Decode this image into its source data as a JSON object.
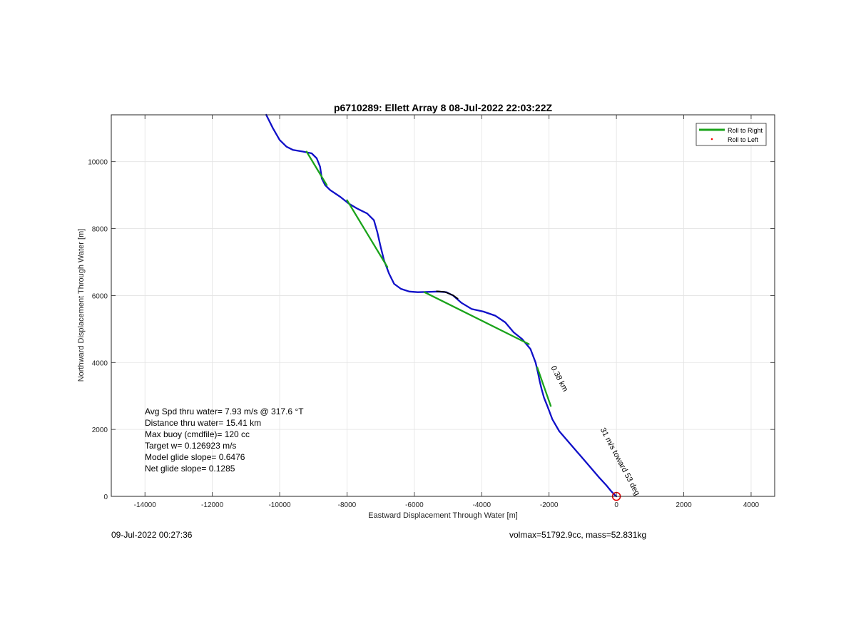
{
  "chart_data": {
    "type": "line",
    "title": "p6710289: Ellett Array 8 08-Jul-2022 22:03:22Z",
    "xlabel": "Eastward Displacement Through Water [m]",
    "ylabel": "Northward Displacement Through Water [m]",
    "xlim": [
      -15000,
      4700
    ],
    "ylim": [
      0,
      11400
    ],
    "xticks": [
      -14000,
      -12000,
      -10000,
      -8000,
      -6000,
      -4000,
      -2000,
      0,
      2000,
      4000
    ],
    "yticks": [
      0,
      2000,
      4000,
      6000,
      8000,
      10000
    ],
    "grid": true,
    "legend_position": "top-right",
    "legend": [
      {
        "label": "Roll to Right",
        "color": "#1aa31a",
        "marker": "line"
      },
      {
        "label": "Roll to Left",
        "color": "#ff0000",
        "marker": "dot"
      }
    ],
    "series": [
      {
        "color": "#1010c8",
        "x": [
          -10400,
          -10200,
          -10000,
          -9800,
          -9600,
          -9300,
          -9050,
          -8900,
          -8800,
          -8750,
          -8650,
          -8500,
          -8200,
          -7950,
          -7700,
          -7400,
          -7200,
          -7100,
          -7000,
          -6900,
          -6750,
          -6600,
          -6400,
          -6150,
          -5900,
          -5600,
          -5300,
          -5050,
          -4850,
          -4600,
          -4300,
          -3950,
          -3600,
          -3300,
          -3050,
          -2800,
          -2550,
          -2400,
          -2330,
          -2280,
          -2220,
          -2150,
          -2050,
          -1900,
          -1700,
          -1400,
          -1100,
          -800,
          -500,
          -300,
          -150,
          -50,
          0
        ],
        "y": [
          11400,
          11000,
          10650,
          10450,
          10350,
          10300,
          10250,
          10100,
          9850,
          9500,
          9300,
          9150,
          8950,
          8750,
          8600,
          8450,
          8250,
          7900,
          7450,
          7050,
          6650,
          6350,
          6200,
          6120,
          6100,
          6110,
          6120,
          6100,
          6000,
          5780,
          5600,
          5520,
          5400,
          5200,
          4900,
          4700,
          4400,
          4000,
          3700,
          3450,
          3200,
          2950,
          2700,
          2300,
          1950,
          1600,
          1250,
          900,
          550,
          330,
          150,
          40,
          0
        ]
      },
      {
        "color": "#1aa31a",
        "segments": [
          {
            "x": [
              -9200,
              -8600
            ],
            "y": [
              10300,
              9300
            ]
          },
          {
            "x": [
              -8000,
              -6800
            ],
            "y": [
              8850,
              6850
            ]
          },
          {
            "x": [
              -5700,
              -2600
            ],
            "y": [
              6100,
              4550
            ]
          },
          {
            "x": [
              -2350,
              -1950
            ],
            "y": [
              3850,
              2700
            ]
          }
        ]
      },
      {
        "color": "#000000",
        "x": [
          -5350,
          -5100,
          -4850,
          -4700
        ],
        "y": [
          6130,
          6110,
          6010,
          5900
        ]
      }
    ],
    "start_marker": {
      "x": 0,
      "y": 0,
      "color": "#e00000"
    },
    "annotations": [
      {
        "text": "0.38 km",
        "x": -1950,
        "y": 3850
      },
      {
        "text": "31 m/s toward 53 deg",
        "x": -480,
        "y": 2000
      }
    ]
  },
  "stats": {
    "line1": "Avg Spd thru water=  7.93 m/s @ 317.6 °T",
    "line2": "Distance thru water= 15.41 km",
    "line3": "Max buoy (cmdfile)= 120 cc",
    "line4": "Target w= 0.126923 m/s",
    "line5": "Model glide slope= 0.6476",
    "line6": "Net glide slope= 0.1285"
  },
  "footer": {
    "left": "09-Jul-2022 00:27:36",
    "right": "volmax=51792.9cc, mass=52.831kg"
  }
}
